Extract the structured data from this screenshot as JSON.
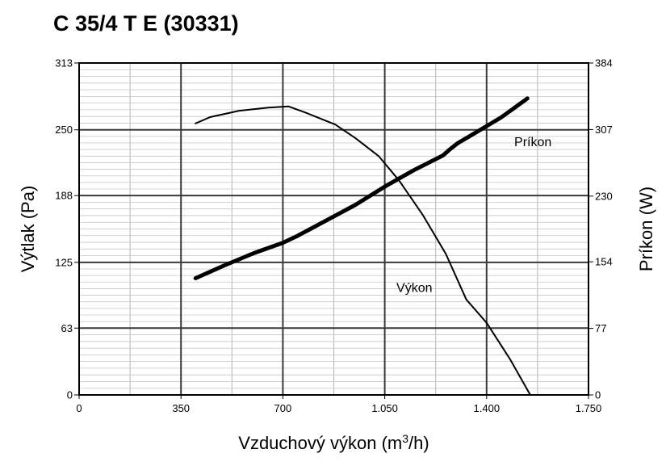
{
  "title": "C 35/4 T E (30331)",
  "chart_data": {
    "type": "line",
    "xlabel": "Vzduchový výkon (m³/h)",
    "xlabel_parts": {
      "base": "Vzduchový výkon (m",
      "sup": "3",
      "tail": "/h)"
    },
    "ylabel_left": "Výtlak (Pa)",
    "ylabel_right": "Príkon (W)",
    "x_range": [
      0,
      1750
    ],
    "y_left_range": [
      0,
      313
    ],
    "y_right_range": [
      0,
      384
    ],
    "x_ticks": [
      {
        "value": 0,
        "label": "0"
      },
      {
        "value": 350,
        "label": "350"
      },
      {
        "value": 700,
        "label": "700"
      },
      {
        "value": 1050,
        "label": "1.050"
      },
      {
        "value": 1400,
        "label": "1.400"
      },
      {
        "value": 1750,
        "label": "1.750"
      }
    ],
    "y_left_ticks": [
      {
        "value": 0,
        "label": "0"
      },
      {
        "value": 63,
        "label": "63"
      },
      {
        "value": 125,
        "label": "125"
      },
      {
        "value": 188,
        "label": "188"
      },
      {
        "value": 250,
        "label": "250"
      },
      {
        "value": 313,
        "label": "313"
      }
    ],
    "y_right_ticks": [
      {
        "value": 0,
        "label": "0"
      },
      {
        "value": 77,
        "label": "77"
      },
      {
        "value": 154,
        "label": "154"
      },
      {
        "value": 230,
        "label": "230"
      },
      {
        "value": 307,
        "label": "307"
      },
      {
        "value": 384,
        "label": "384"
      }
    ],
    "x_minor_step": 175,
    "y_minor_steps": 10,
    "grid": true,
    "series": [
      {
        "name": "Výkon",
        "axis": "left",
        "x": [
          400,
          450,
          550,
          650,
          720,
          780,
          880,
          950,
          1030,
          1100,
          1180,
          1260,
          1330,
          1400,
          1480,
          1550
        ],
        "y": [
          256,
          262,
          268,
          271,
          272,
          266,
          255,
          242,
          225,
          202,
          170,
          133,
          90,
          68,
          34,
          0
        ]
      },
      {
        "name": "Príkon",
        "axis": "right",
        "x": [
          400,
          500,
          600,
          700,
          750,
          850,
          950,
          1050,
          1150,
          1250,
          1270,
          1300,
          1350,
          1400,
          1450,
          1540
        ],
        "y": [
          135,
          150,
          164,
          176,
          184,
          202,
          220,
          241,
          260,
          277,
          283,
          291,
          301,
          311,
          321,
          343
        ]
      }
    ]
  }
}
